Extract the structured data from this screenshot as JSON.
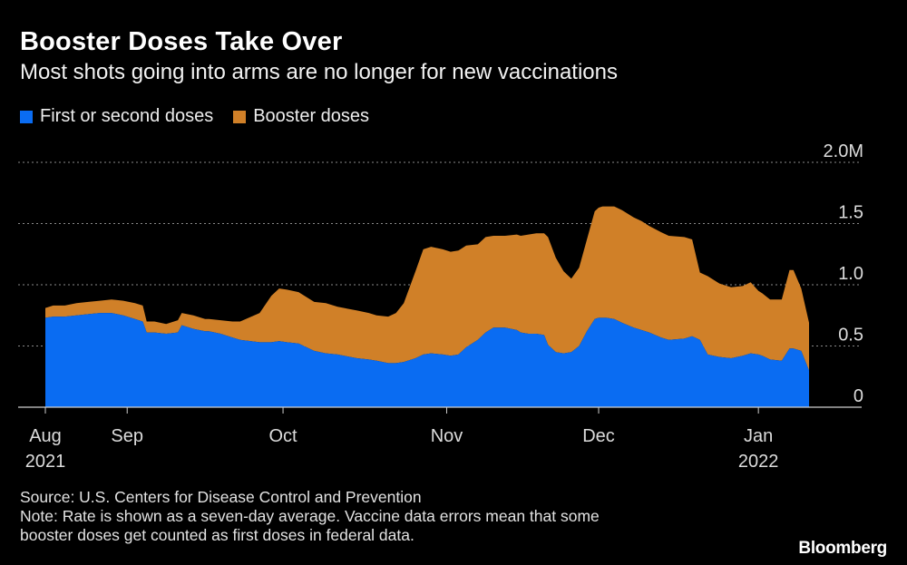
{
  "header": {
    "title": "Booster Doses Take Over",
    "subtitle": "Most shots going into arms are no longer for new vaccinations"
  },
  "legend": [
    {
      "label": "First or second doses",
      "color": "#0a6cf2"
    },
    {
      "label": "Booster doses",
      "color": "#d08028"
    }
  ],
  "footer": {
    "source": "Source: U.S. Centers for Disease Control and Prevention",
    "note_line1": "Note: Rate is shown as a seven-day average. Vaccine data errors mean that some",
    "note_line2": "booster doses get counted as first doses in federal data."
  },
  "brand": "Bloomberg",
  "chart_data": {
    "type": "area",
    "stacked": true,
    "title": "Booster Doses Take Over",
    "subtitle": "Most shots going into arms are no longer for new vaccinations",
    "xlabel": "",
    "ylabel": "",
    "ylim": [
      0,
      2.0
    ],
    "y_unit": "M",
    "y_ticks": [
      {
        "value": 0,
        "label": "0"
      },
      {
        "value": 0.5,
        "label": "0.5"
      },
      {
        "value": 1.0,
        "label": "1.0"
      },
      {
        "value": 1.5,
        "label": "1.5"
      },
      {
        "value": 2.0,
        "label": "2.0M"
      }
    ],
    "x_ticks": [
      {
        "day": 0,
        "label": "Aug",
        "sublabel": "2021"
      },
      {
        "day": 21,
        "label": "Sep",
        "sublabel": ""
      },
      {
        "day": 61,
        "label": "Oct",
        "sublabel": ""
      },
      {
        "day": 103,
        "label": "Nov",
        "sublabel": ""
      },
      {
        "day": 142,
        "label": "Dec",
        "sublabel": ""
      },
      {
        "day": 183,
        "label": "Jan",
        "sublabel": "2022"
      }
    ],
    "x_unit": "days since Aug 10, 2021",
    "x": [
      0,
      2,
      5,
      8,
      11,
      14,
      17,
      20,
      23,
      25,
      26,
      28,
      31,
      34,
      35,
      38,
      41,
      42,
      45,
      48,
      50,
      55,
      58,
      60,
      62,
      65,
      69,
      72,
      75,
      80,
      83,
      85,
      88,
      90,
      92,
      95,
      97,
      99,
      102,
      104,
      106,
      108,
      111,
      113,
      115,
      118,
      121,
      122,
      124,
      126,
      128,
      129,
      131,
      133,
      135,
      137,
      139,
      141,
      142,
      143,
      144,
      146,
      148,
      151,
      153,
      155,
      158,
      160,
      164,
      166,
      168,
      170,
      173,
      176,
      179,
      181,
      183,
      184,
      186,
      189,
      191,
      192,
      194,
      196
    ],
    "series": [
      {
        "name": "First or second doses",
        "color": "#0a6cf2",
        "values": [
          0.73,
          0.74,
          0.74,
          0.75,
          0.76,
          0.77,
          0.77,
          0.75,
          0.72,
          0.7,
          0.61,
          0.61,
          0.6,
          0.61,
          0.67,
          0.64,
          0.62,
          0.62,
          0.6,
          0.57,
          0.55,
          0.53,
          0.53,
          0.54,
          0.53,
          0.52,
          0.46,
          0.44,
          0.43,
          0.4,
          0.39,
          0.38,
          0.36,
          0.36,
          0.37,
          0.4,
          0.43,
          0.44,
          0.43,
          0.42,
          0.43,
          0.49,
          0.55,
          0.61,
          0.65,
          0.65,
          0.63,
          0.61,
          0.6,
          0.6,
          0.59,
          0.51,
          0.45,
          0.44,
          0.45,
          0.5,
          0.62,
          0.72,
          0.73,
          0.73,
          0.73,
          0.72,
          0.69,
          0.65,
          0.63,
          0.61,
          0.57,
          0.55,
          0.56,
          0.58,
          0.55,
          0.43,
          0.41,
          0.4,
          0.42,
          0.44,
          0.43,
          0.42,
          0.39,
          0.38,
          0.48,
          0.48,
          0.46,
          0.3
        ]
      },
      {
        "name": "Booster doses",
        "color": "#d08028",
        "values": [
          0.08,
          0.09,
          0.09,
          0.1,
          0.1,
          0.1,
          0.11,
          0.12,
          0.13,
          0.13,
          0.09,
          0.09,
          0.08,
          0.1,
          0.1,
          0.11,
          0.1,
          0.1,
          0.11,
          0.13,
          0.15,
          0.24,
          0.38,
          0.43,
          0.43,
          0.42,
          0.4,
          0.41,
          0.39,
          0.39,
          0.38,
          0.37,
          0.38,
          0.41,
          0.48,
          0.71,
          0.86,
          0.87,
          0.86,
          0.85,
          0.85,
          0.83,
          0.78,
          0.78,
          0.75,
          0.75,
          0.78,
          0.79,
          0.81,
          0.82,
          0.83,
          0.88,
          0.77,
          0.67,
          0.6,
          0.64,
          0.75,
          0.88,
          0.9,
          0.91,
          0.91,
          0.92,
          0.92,
          0.9,
          0.89,
          0.87,
          0.86,
          0.85,
          0.83,
          0.79,
          0.55,
          0.64,
          0.6,
          0.58,
          0.57,
          0.58,
          0.52,
          0.51,
          0.49,
          0.5,
          0.64,
          0.64,
          0.51,
          0.39
        ]
      }
    ]
  }
}
